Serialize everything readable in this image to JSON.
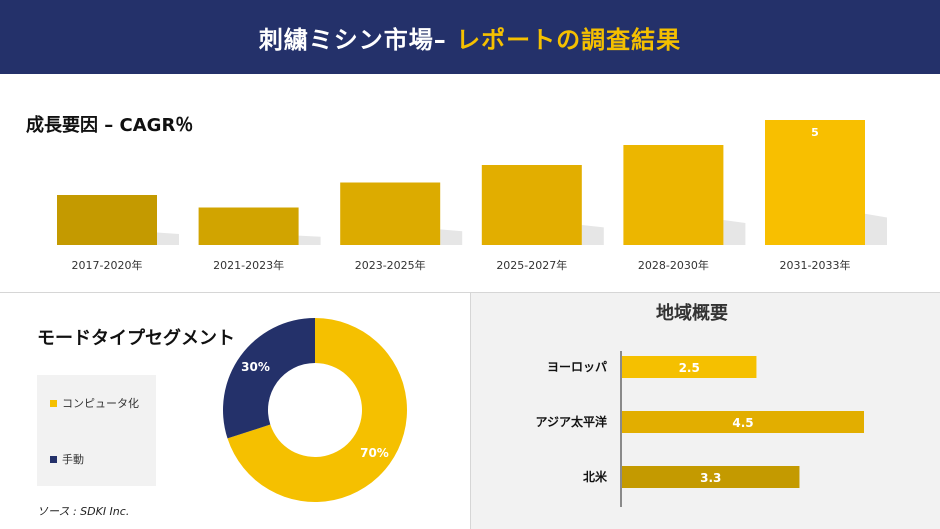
{
  "header": {
    "title_main": "刺繍ミシン市場– ",
    "title_accent": "レポートの調査結果"
  },
  "colors": {
    "header_bg": "#24316a",
    "accent": "#f5c000",
    "bar_shades": [
      "#c49a00",
      "#d1a400",
      "#dcab00",
      "#e2ae00",
      "#ecb600",
      "#f8bf00"
    ],
    "navy": "#24316a"
  },
  "chart_data": [
    {
      "type": "bar",
      "title": "成長要因 – CAGR％",
      "categories": [
        "2017-2020年",
        "2021-2023年",
        "2023-2025年",
        "2025-2027年",
        "2028-2030年",
        "2031-2033年"
      ],
      "values": [
        2,
        1.5,
        2.5,
        3.2,
        4,
        5
      ],
      "data_labels": [
        "",
        "",
        "",
        "",
        "",
        "5"
      ],
      "ylim": [
        0,
        5
      ]
    },
    {
      "type": "pie",
      "title": "モードタイプセグメント",
      "categories": [
        "コンピュータ化",
        "手動"
      ],
      "values": [
        70,
        30
      ],
      "labels": [
        "70%",
        "30%"
      ],
      "colors": [
        "#f5c000",
        "#24316a"
      ]
    },
    {
      "type": "bar",
      "orientation": "horizontal",
      "title": "地域概要",
      "categories": [
        "ヨーロッパ",
        "アジア太平洋",
        "北米"
      ],
      "values": [
        2.5,
        4.5,
        3.3
      ],
      "labels": [
        "2.5",
        "4.5",
        "3.3"
      ],
      "colors": [
        "#f5c000",
        "#e2ae00",
        "#c49a00"
      ],
      "xlim": [
        0,
        4.5
      ]
    }
  ],
  "source": "ソース : SDKI Inc."
}
